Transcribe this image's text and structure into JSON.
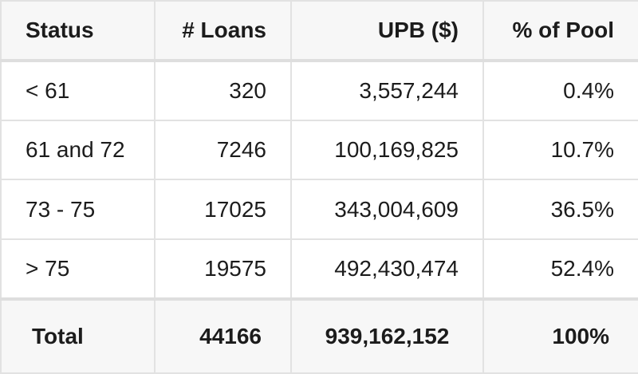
{
  "table": {
    "headers": [
      "Status",
      "# Loans",
      "UPB ($)",
      "% of Pool"
    ],
    "rows": [
      [
        "< 61",
        "320",
        "3,557,244",
        "0.4%"
      ],
      [
        "61 and 72",
        "7246",
        "100,169,825",
        "10.7%"
      ],
      [
        "73 - 75",
        "17025",
        "343,004,609",
        "36.5%"
      ],
      [
        "> 75",
        "19575",
        "492,430,474",
        "52.4%"
      ]
    ],
    "total": [
      "Total",
      "44166",
      "939,162,152",
      "100%"
    ]
  }
}
